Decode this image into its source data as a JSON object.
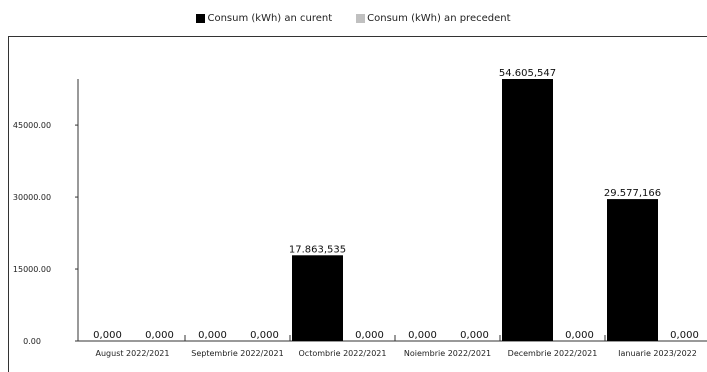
{
  "legend": {
    "current_label": "Consum (kWh) an curent",
    "previous_label": "Consum (kWh) an precedent"
  },
  "colors": {
    "current": "#000000",
    "previous": "#c0c0c0"
  },
  "chart_data": {
    "type": "bar",
    "categories": [
      "August 2022/2021",
      "Septembrie 2022/2021",
      "Octombrie 2022/2021",
      "Noiembrie 2022/2021",
      "Decembrie 2022/2021",
      "Ianuarie 2023/2022"
    ],
    "series": [
      {
        "name": "Consum (kWh) an curent",
        "values": [
          0,
          0,
          17863.535,
          0,
          54605.547,
          29577.166
        ],
        "labels": [
          "0,000",
          "0,000",
          "17.863,535",
          "0,000",
          "54.605,547",
          "29.577,166"
        ]
      },
      {
        "name": "Consum (kWh) an precedent",
        "values": [
          0,
          0,
          0,
          0,
          0,
          0
        ],
        "labels": [
          "0,000",
          "0,000",
          "0,000",
          "0,000",
          "0,000",
          "0,000"
        ]
      }
    ],
    "yticks": [
      0,
      15000,
      30000,
      45000
    ],
    "ytick_labels": [
      "0.00",
      "15000.00",
      "30000.00",
      "45000.00"
    ],
    "ylim": [
      0,
      54605.547
    ],
    "legend_position": "top",
    "grid": false
  }
}
